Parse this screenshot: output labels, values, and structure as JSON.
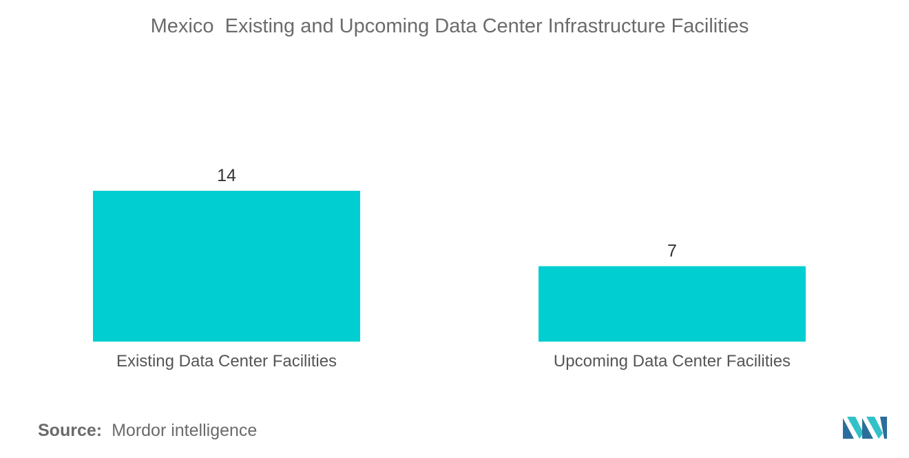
{
  "chart_data": {
    "type": "bar",
    "title": "Mexico  Existing and Upcoming Data Center Infrastructure Facilities",
    "categories": [
      "Existing Data Center Facilities",
      "Upcoming Data Center Facilities"
    ],
    "values": [
      14,
      7
    ],
    "data_labels": [
      "14",
      "7"
    ],
    "xlabel": "",
    "ylabel": "",
    "ylim": [
      0,
      14
    ],
    "grid": false,
    "legend": "none",
    "bar_color": "#00CED1"
  },
  "source": {
    "label": "Source:",
    "text": "Mordor intelligence"
  },
  "colors": {
    "bar": "#00CED1",
    "logo_dark": "#2c6e9b",
    "logo_light": "#33c1c9"
  },
  "logo_icon": "mordor-intelligence-logo-icon"
}
